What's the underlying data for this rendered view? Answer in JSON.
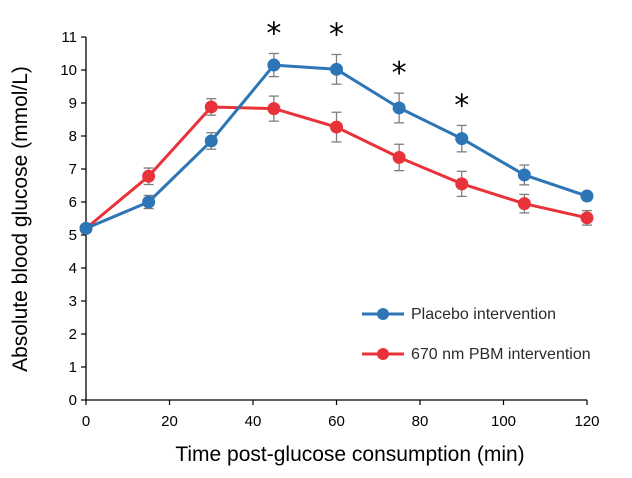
{
  "chart_data": {
    "type": "line",
    "title": "",
    "xlabel": "Time post-glucose consumption (min)",
    "ylabel": "Absolute blood glucose (mmol/L)",
    "xlim": [
      0,
      120
    ],
    "ylim": [
      0,
      11
    ],
    "x_ticks": [
      0,
      20,
      40,
      60,
      80,
      100,
      120
    ],
    "y_ticks": [
      0,
      1,
      2,
      3,
      4,
      5,
      6,
      7,
      8,
      9,
      10,
      11
    ],
    "grid": false,
    "legend_position": "bottom-right",
    "series": [
      {
        "name": "Placebo intervention",
        "color": "#2e75b6",
        "x": [
          0,
          15,
          30,
          45,
          60,
          75,
          90,
          105,
          120
        ],
        "values": [
          5.2,
          6.0,
          7.85,
          10.15,
          10.02,
          8.85,
          7.92,
          6.82,
          6.18
        ],
        "errors": [
          0.1,
          0.2,
          0.25,
          0.35,
          0.45,
          0.45,
          0.4,
          0.3,
          0.12
        ]
      },
      {
        "name": "670 nm PBM intervention",
        "color": "#e8333a",
        "x": [
          0,
          15,
          30,
          45,
          60,
          75,
          90,
          105,
          120
        ],
        "values": [
          5.2,
          6.78,
          8.88,
          8.83,
          8.27,
          7.35,
          6.55,
          5.95,
          5.52
        ],
        "errors": [
          0.1,
          0.25,
          0.25,
          0.38,
          0.45,
          0.4,
          0.38,
          0.28,
          0.22
        ]
      }
    ],
    "significance": {
      "symbol": "*",
      "x": [
        45,
        60,
        75,
        90
      ]
    }
  }
}
